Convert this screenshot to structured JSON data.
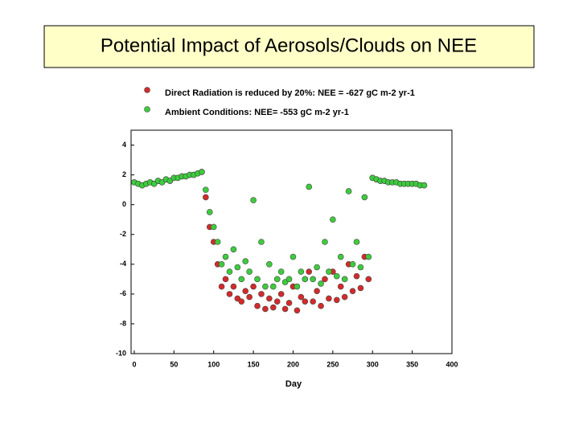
{
  "chart_data": {
    "type": "scatter",
    "title": "Potential Impact of Aerosols/Clouds on NEE",
    "xlabel": "Day",
    "x": [
      0,
      5,
      10,
      15,
      20,
      25,
      30,
      35,
      40,
      45,
      50,
      55,
      60,
      65,
      70,
      75,
      80,
      85,
      90,
      95,
      100,
      105,
      110,
      115,
      120,
      125,
      130,
      135,
      140,
      145,
      150,
      155,
      160,
      165,
      170,
      175,
      180,
      185,
      190,
      195,
      200,
      205,
      210,
      215,
      220,
      225,
      230,
      235,
      240,
      245,
      250,
      255,
      260,
      265,
      270,
      275,
      280,
      285,
      290,
      295,
      300,
      305,
      310,
      315,
      320,
      325,
      330,
      335,
      340,
      345,
      350,
      355,
      360,
      365
    ],
    "series": [
      {
        "name": "Direct Radiation is reduced by 20%: NEE = -627 gC m-2 yr-1",
        "color": "#d42a2a",
        "values": [
          1.5,
          1.4,
          1.3,
          1.4,
          1.5,
          1.4,
          1.6,
          1.5,
          1.7,
          1.6,
          1.8,
          1.8,
          1.9,
          1.9,
          2.0,
          2.0,
          2.1,
          2.2,
          0.5,
          -1.5,
          -2.5,
          -4.0,
          -5.5,
          -5.0,
          -6.0,
          -5.5,
          -6.3,
          -6.5,
          -5.8,
          -6.2,
          -5.5,
          -6.8,
          -6.0,
          -7.0,
          -6.3,
          -6.9,
          -6.5,
          -6.0,
          -7.0,
          -6.6,
          -5.5,
          -7.1,
          -6.2,
          -6.5,
          -4.5,
          -6.5,
          -5.8,
          -6.8,
          -5.0,
          -6.3,
          -4.5,
          -6.4,
          -5.5,
          -6.2,
          -4.0,
          -5.8,
          -4.8,
          -5.6,
          -3.5,
          -5.0,
          1.8,
          1.7,
          1.6,
          1.6,
          1.5,
          1.5,
          1.5,
          1.4,
          1.4,
          1.4,
          1.4,
          1.4,
          1.3,
          1.3
        ]
      },
      {
        "name": "Ambient Conditions: NEE= -553 gC m-2 yr-1",
        "color": "#3ccc3c",
        "values": [
          1.5,
          1.4,
          1.3,
          1.4,
          1.5,
          1.4,
          1.6,
          1.5,
          1.7,
          1.6,
          1.8,
          1.8,
          1.9,
          1.9,
          2.0,
          2.0,
          2.1,
          2.2,
          1.0,
          -0.5,
          -1.5,
          -2.5,
          -4.0,
          -3.5,
          -4.5,
          -3.0,
          -4.2,
          -5.0,
          -3.8,
          -4.5,
          0.3,
          -5.0,
          -2.5,
          -5.5,
          -4.0,
          -5.5,
          -5.0,
          -4.5,
          -5.2,
          -5.0,
          -3.5,
          -5.5,
          -4.5,
          -5.0,
          1.2,
          -5.0,
          -4.2,
          -5.3,
          -2.5,
          -4.5,
          -1.0,
          -4.8,
          -3.5,
          -5.0,
          0.9,
          -4.0,
          -2.5,
          -4.2,
          0.5,
          -3.5,
          1.8,
          1.7,
          1.6,
          1.6,
          1.5,
          1.5,
          1.5,
          1.4,
          1.4,
          1.4,
          1.4,
          1.4,
          1.3,
          1.3
        ]
      }
    ],
    "xlim": [
      -4,
      400
    ],
    "ylim": [
      -10,
      5
    ],
    "xticks": [
      0,
      50,
      100,
      150,
      200,
      250,
      300,
      350,
      400
    ],
    "yticks": [
      -10,
      -8,
      -6,
      -4,
      -2,
      0,
      2,
      4
    ]
  }
}
